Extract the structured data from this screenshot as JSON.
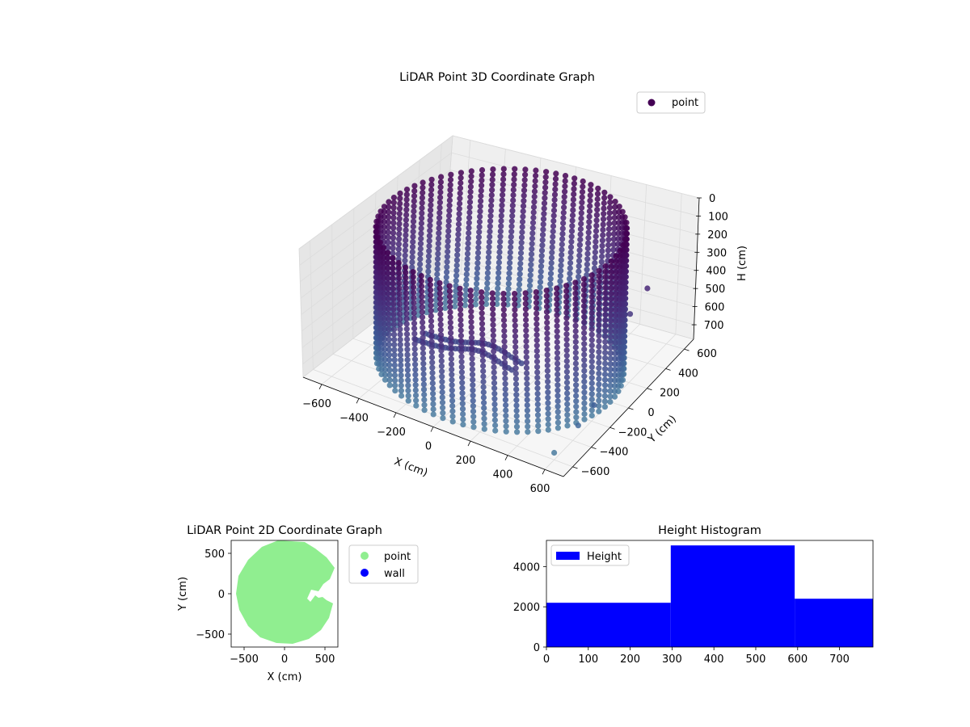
{
  "chart_data": [
    {
      "type": "scatter",
      "projection": "3d",
      "title": "LiDAR Point 3D Coordinate Graph",
      "xlabel": "X (cm)",
      "ylabel": "Y (cm)",
      "zlabel": "H (cm)",
      "xlim": [
        -700,
        700
      ],
      "ylim": [
        -700,
        700
      ],
      "zlim": [
        0,
        780
      ],
      "z_inverted": true,
      "xticks": [
        -600,
        -400,
        -200,
        0,
        200,
        400,
        600
      ],
      "yticks": [
        -600,
        -400,
        -200,
        0,
        200,
        400,
        600
      ],
      "zticks": [
        0,
        100,
        200,
        300,
        400,
        500,
        600,
        700
      ],
      "xtick_labels": [
        "−600",
        "−400",
        "−200",
        "0",
        "200",
        "400",
        "600"
      ],
      "ytick_labels": [
        "−600",
        "−400",
        "−200",
        "0",
        "200",
        "400",
        "600"
      ],
      "ztick_labels": [
        "0",
        "100",
        "200",
        "300",
        "400",
        "500",
        "600",
        "700"
      ],
      "grid": true,
      "colormap": "viridis",
      "color_by": "height",
      "legend": {
        "entries": [
          "point"
        ],
        "placement": "top-right"
      },
      "series": [
        {
          "name": "point",
          "shape": "cylindrical wall",
          "radius": 600,
          "z_range": [
            0,
            780
          ],
          "floor_mound": true,
          "outliers": [
            {
              "x": 580,
              "y": -560,
              "h": 770
            },
            {
              "x": 620,
              "y": -380,
              "h": 700
            },
            {
              "x": 640,
              "y": -250,
              "h": 650
            },
            {
              "x": 600,
              "y": 200,
              "h": 400
            },
            {
              "x": 640,
              "y": 300,
              "h": 300
            }
          ]
        }
      ]
    },
    {
      "type": "scatter",
      "title": "LiDAR Point 2D Coordinate Graph",
      "xlabel": "X (cm)",
      "ylabel": "Y (cm)",
      "xlim": [
        -660,
        660
      ],
      "ylim": [
        -660,
        660
      ],
      "xticks": [
        -500,
        0,
        500
      ],
      "yticks": [
        -500,
        0,
        500
      ],
      "xtick_labels": [
        "−500",
        "0",
        "500"
      ],
      "ytick_labels": [
        "−500",
        "0",
        "500"
      ],
      "legend": {
        "entries": [
          "point",
          "wall"
        ],
        "placement": "outside-right"
      },
      "series": [
        {
          "name": "point",
          "color": "#90ee90",
          "outline": [
            [
              -600,
              0
            ],
            [
              -560,
              -200
            ],
            [
              -450,
              -400
            ],
            [
              -300,
              -540
            ],
            [
              -100,
              -610
            ],
            [
              100,
              -620
            ],
            [
              300,
              -560
            ],
            [
              450,
              -450
            ],
            [
              550,
              -300
            ],
            [
              600,
              -120
            ],
            [
              520,
              -80
            ],
            [
              470,
              -40
            ],
            [
              420,
              -50
            ],
            [
              380,
              -20
            ],
            [
              320,
              -100
            ],
            [
              280,
              -60
            ],
            [
              330,
              50
            ],
            [
              420,
              30
            ],
            [
              480,
              120
            ],
            [
              560,
              180
            ],
            [
              620,
              320
            ],
            [
              520,
              450
            ],
            [
              380,
              560
            ],
            [
              250,
              640
            ],
            [
              -80,
              660
            ],
            [
              -280,
              580
            ],
            [
              -450,
              420
            ],
            [
              -570,
              220
            ]
          ]
        },
        {
          "name": "wall",
          "color": "#0000ff",
          "points": []
        }
      ]
    },
    {
      "type": "bar",
      "histogram": true,
      "title": "Height Histogram",
      "xlabel": "",
      "ylabel": "",
      "xlim": [
        0,
        780
      ],
      "ylim": [
        0,
        5300
      ],
      "xticks": [
        0,
        100,
        200,
        300,
        400,
        500,
        600,
        700
      ],
      "yticks": [
        0,
        2000,
        4000
      ],
      "xtick_labels": [
        "0",
        "100",
        "200",
        "300",
        "400",
        "500",
        "600",
        "700"
      ],
      "ytick_labels": [
        "0",
        "2000",
        "4000"
      ],
      "legend": {
        "entries": [
          "Height"
        ],
        "placement": "top-left"
      },
      "color": "#0000ff",
      "bins": [
        {
          "start": 0,
          "end": 297,
          "count": 2200
        },
        {
          "start": 297,
          "end": 593,
          "count": 5050
        },
        {
          "start": 593,
          "end": 780,
          "count": 2400
        }
      ]
    }
  ]
}
